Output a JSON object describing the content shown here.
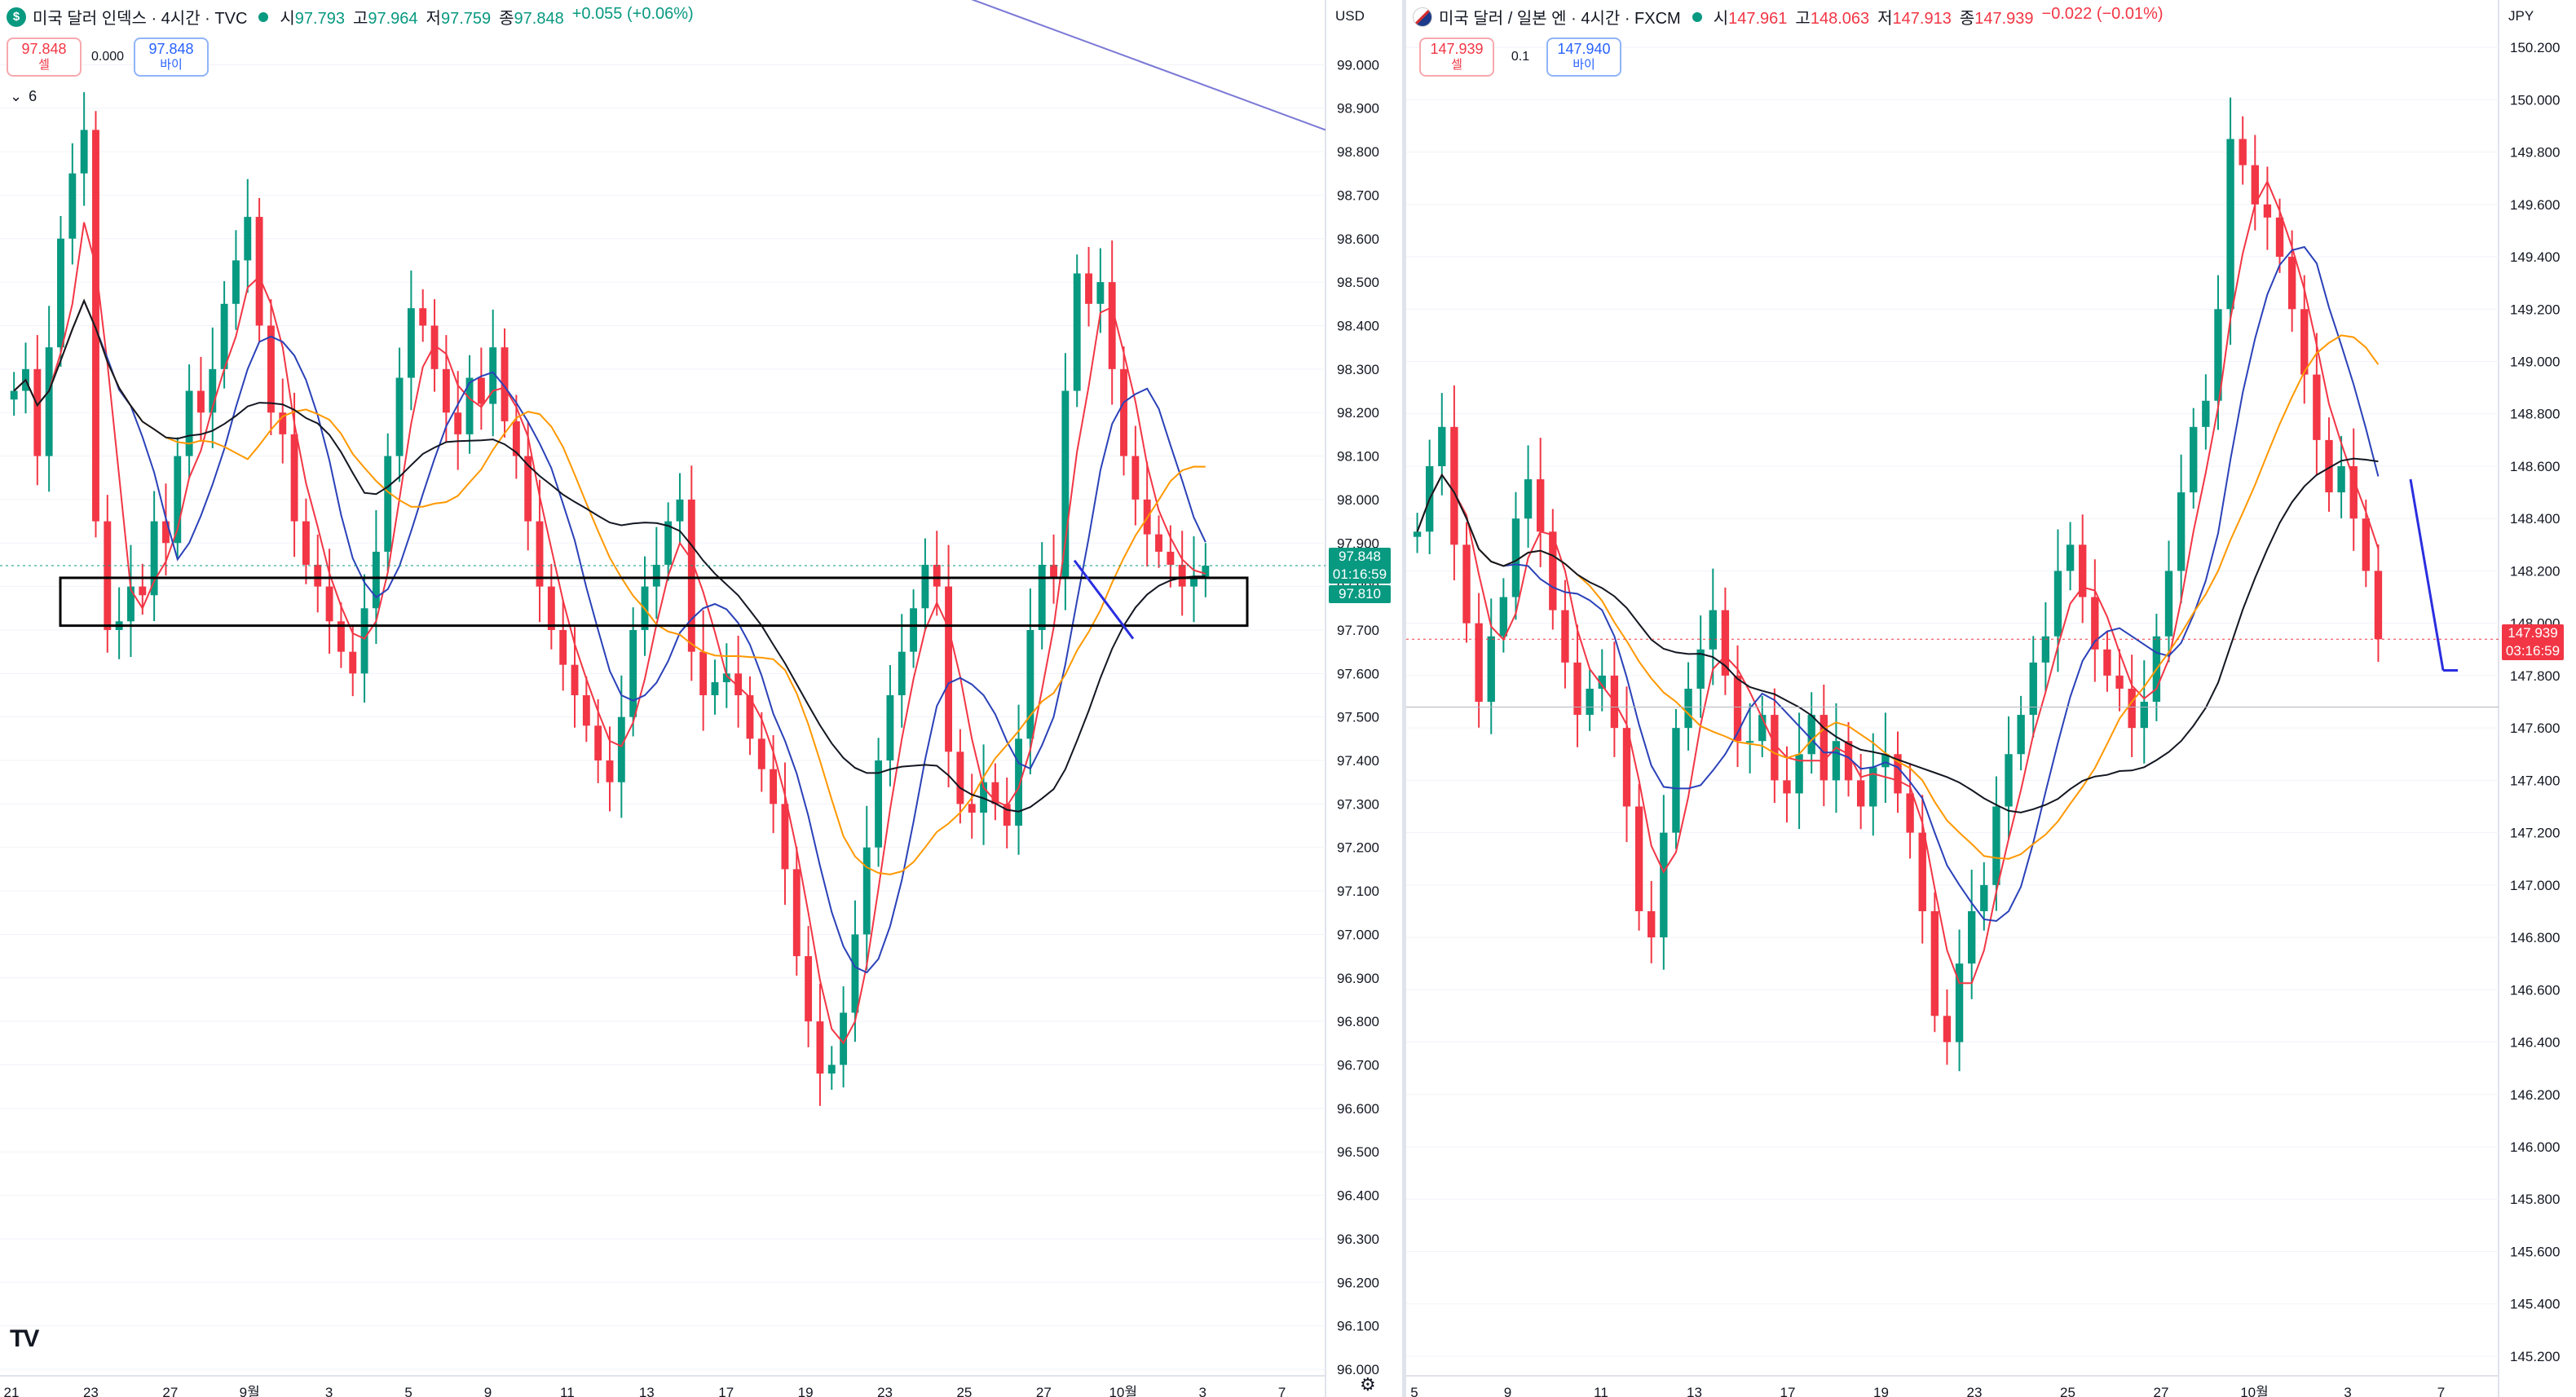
{
  "left_chart": {
    "symbol_badge": "$",
    "title": "미국 달러 인덱스 · 4시간 · TVC",
    "ohlc": {
      "o_label": "시",
      "o": "97.793",
      "h_label": "고",
      "h": "97.964",
      "l_label": "저",
      "l": "97.759",
      "c_label": "종",
      "c": "97.848",
      "change": "+0.055 (+0.06%)"
    },
    "sell": {
      "price": "97.848",
      "label": "셀"
    },
    "spread": "0.000",
    "buy": {
      "price": "97.848",
      "label": "바이"
    },
    "indicators_toggle": "6",
    "currency": "USD",
    "y_ticks": [
      "99.000",
      "98.900",
      "98.800",
      "98.700",
      "98.600",
      "98.500",
      "98.400",
      "98.300",
      "98.200",
      "98.100",
      "98.000",
      "97.900",
      "97.800",
      "97.700",
      "97.600",
      "97.500",
      "97.400",
      "97.300",
      "97.200",
      "97.100",
      "97.000",
      "96.900",
      "96.800",
      "96.700",
      "96.600",
      "96.500",
      "96.400",
      "96.300",
      "96.200",
      "96.100",
      "96.000"
    ],
    "x_ticks": [
      "21",
      "23",
      "27",
      "9월",
      "3",
      "5",
      "9",
      "11",
      "13",
      "17",
      "19",
      "23",
      "25",
      "27",
      "10월",
      "3",
      "7"
    ],
    "last_price": "97.848",
    "countdown": "01:16:59",
    "ma_price": "97.810",
    "logo": "TV"
  },
  "right_chart": {
    "title": "미국 달러 / 일본 엔 · 4시간 · FXCM",
    "ohlc": {
      "o_label": "시",
      "o": "147.961",
      "h_label": "고",
      "h": "148.063",
      "l_label": "저",
      "l": "147.913",
      "c_label": "종",
      "c": "147.939",
      "change": "−0.022 (−0.01%)"
    },
    "sell": {
      "price": "147.939",
      "label": "셀"
    },
    "spread": "0.1",
    "buy": {
      "price": "147.940",
      "label": "바이"
    },
    "currency": "JPY",
    "y_ticks": [
      "150.200",
      "150.000",
      "149.800",
      "149.600",
      "149.400",
      "149.200",
      "149.000",
      "148.800",
      "148.600",
      "148.400",
      "148.200",
      "148.000",
      "147.800",
      "147.600",
      "147.400",
      "147.200",
      "147.000",
      "146.800",
      "146.600",
      "146.400",
      "146.200",
      "146.000",
      "145.800",
      "145.600",
      "145.400",
      "145.200"
    ],
    "x_ticks": [
      "5",
      "9",
      "11",
      "13",
      "17",
      "19",
      "23",
      "25",
      "27",
      "10월",
      "3",
      "7"
    ],
    "last_price": "147.939",
    "countdown": "03:16:59"
  },
  "chart_data": [
    {
      "type": "candlestick",
      "title": "미국 달러 인덱스 · 4시간 · TVC",
      "ylim": [
        96.0,
        99.1
      ],
      "x_ticks": [
        "21",
        "23",
        "27",
        "9월",
        "3",
        "5",
        "9",
        "11",
        "13",
        "17",
        "19",
        "23",
        "25",
        "27",
        "10월",
        "3",
        "7"
      ],
      "closes": [
        98.25,
        98.3,
        98.1,
        98.35,
        98.6,
        98.75,
        98.85,
        97.95,
        97.7,
        97.72,
        97.8,
        97.78,
        97.95,
        97.9,
        98.1,
        98.25,
        98.2,
        98.3,
        98.45,
        98.55,
        98.65,
        98.4,
        98.2,
        98.15,
        97.95,
        97.85,
        97.8,
        97.72,
        97.65,
        97.6,
        97.75,
        97.88,
        98.1,
        98.28,
        98.44,
        98.4,
        98.3,
        98.2,
        98.15,
        98.28,
        98.22,
        98.35,
        98.18,
        98.1,
        97.95,
        97.8,
        97.7,
        97.62,
        97.55,
        97.48,
        97.4,
        97.35,
        97.5,
        97.7,
        97.8,
        97.85,
        97.95,
        98.0,
        97.65,
        97.55,
        97.58,
        97.6,
        97.55,
        97.45,
        97.38,
        97.3,
        97.15,
        96.95,
        96.8,
        96.68,
        96.7,
        96.82,
        97.0,
        97.2,
        97.4,
        97.55,
        97.65,
        97.75,
        97.85,
        97.8,
        97.42,
        97.3,
        97.28,
        97.35,
        97.3,
        97.25,
        97.45,
        97.7,
        97.85,
        97.82,
        98.25,
        98.52,
        98.45,
        98.5,
        98.3,
        98.1,
        98.0,
        97.92,
        97.88,
        97.85,
        97.8,
        97.82,
        97.848
      ],
      "series": [
        {
          "name": "ma_short",
          "color": "#f23645"
        },
        {
          "name": "ma_mid",
          "color": "#2a41b8"
        },
        {
          "name": "ma_long",
          "color": "#ff9800"
        },
        {
          "name": "ma_longest",
          "color": "#131722"
        }
      ],
      "annotations": [
        "rectangle zone ~97.71–97.82",
        "trend line top-right",
        "short blue trend line near last bar"
      ]
    },
    {
      "type": "candlestick",
      "title": "미국 달러 / 일본 엔 · 4시간 · FXCM",
      "ylim": [
        145.15,
        150.3
      ],
      "x_ticks": [
        "5",
        "9",
        "11",
        "13",
        "17",
        "19",
        "23",
        "25",
        "27",
        "10월",
        "3",
        "7"
      ],
      "closes": [
        148.35,
        148.6,
        148.75,
        148.3,
        148.0,
        147.7,
        147.95,
        148.1,
        148.4,
        148.55,
        148.35,
        148.05,
        147.85,
        147.65,
        147.75,
        147.8,
        147.6,
        147.3,
        146.9,
        146.8,
        147.2,
        147.6,
        147.75,
        147.9,
        148.05,
        147.8,
        147.55,
        147.55,
        147.65,
        147.4,
        147.35,
        147.5,
        147.65,
        147.4,
        147.55,
        147.4,
        147.3,
        147.45,
        147.5,
        147.35,
        147.2,
        146.9,
        146.5,
        146.4,
        146.7,
        146.9,
        147.0,
        147.3,
        147.5,
        147.65,
        147.85,
        147.95,
        148.2,
        148.3,
        148.1,
        147.9,
        147.8,
        147.75,
        147.6,
        147.7,
        147.95,
        148.2,
        148.5,
        148.75,
        148.85,
        149.2,
        149.85,
        149.75,
        149.6,
        149.55,
        149.4,
        149.2,
        148.95,
        148.7,
        148.5,
        148.6,
        148.4,
        148.2,
        147.939
      ],
      "series": [
        {
          "name": "ma_short",
          "color": "#f23645"
        },
        {
          "name": "ma_mid",
          "color": "#2a41b8"
        },
        {
          "name": "ma_long",
          "color": "#ff9800"
        },
        {
          "name": "ma_longest",
          "color": "#131722"
        }
      ]
    }
  ],
  "colors": {
    "up": "#089981",
    "down": "#f23645",
    "grid": "#f0f3fa",
    "axis_text": "#131722",
    "label_green": "#089981",
    "label_red": "#f23645"
  }
}
